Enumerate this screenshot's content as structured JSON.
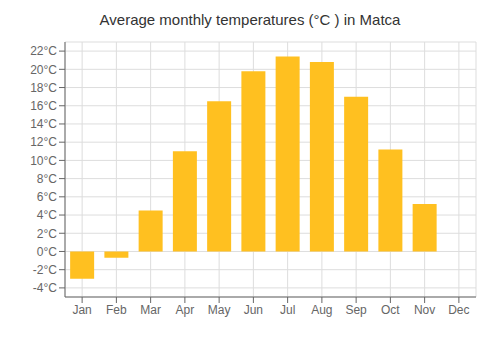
{
  "chart_data": {
    "type": "bar",
    "title": "Average monthly temperatures (°C ) in Matca",
    "categories": [
      "Jan",
      "Feb",
      "Mar",
      "Apr",
      "May",
      "Jun",
      "Jul",
      "Aug",
      "Sep",
      "Oct",
      "Nov",
      "Dec"
    ],
    "values": [
      -3.0,
      -0.7,
      4.5,
      11.0,
      16.5,
      19.8,
      21.4,
      20.8,
      17.0,
      11.2,
      5.2,
      0.0
    ],
    "color": "#FFC020",
    "ylim": [
      -5,
      23
    ],
    "yticks": [
      {
        "value": -4,
        "label": "-4°C"
      },
      {
        "value": -2,
        "label": "-2°C"
      },
      {
        "value": 0,
        "label": "0°C"
      },
      {
        "value": 2,
        "label": "2°C"
      },
      {
        "value": 4,
        "label": "4°C"
      },
      {
        "value": 6,
        "label": "6°C"
      },
      {
        "value": 8,
        "label": "8°C"
      },
      {
        "value": 10,
        "label": "10°C"
      },
      {
        "value": 12,
        "label": "12°C"
      },
      {
        "value": 14,
        "label": "14°C"
      },
      {
        "value": 16,
        "label": "16°C"
      },
      {
        "value": 18,
        "label": "18°C"
      },
      {
        "value": 20,
        "label": "20°C"
      },
      {
        "value": 22,
        "label": "22°C"
      }
    ],
    "grid": true
  }
}
